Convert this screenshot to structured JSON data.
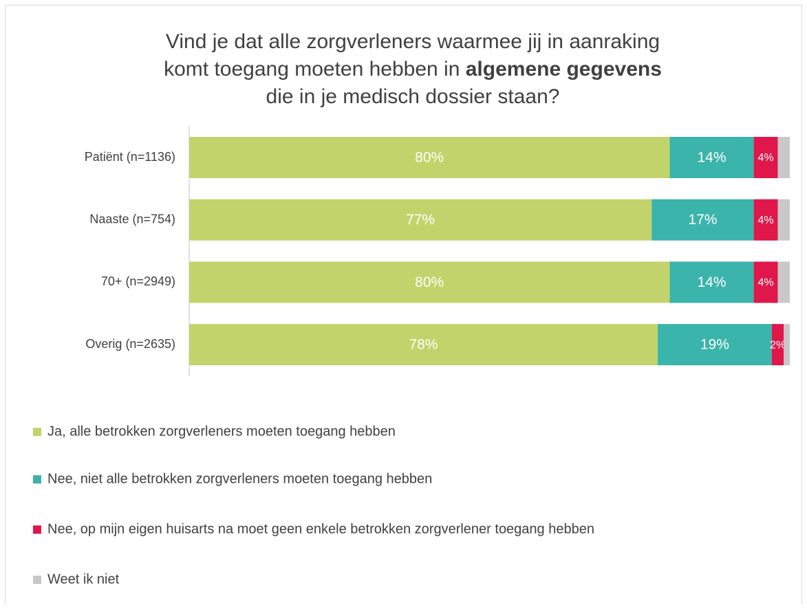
{
  "chart_data": {
    "type": "bar",
    "orientation": "horizontal",
    "stacked": true,
    "title": [
      [
        {
          "text": "Vind je dat alle zorgverleners waarmee jij in aanraking"
        }
      ],
      [
        {
          "text": "komt toegang moeten hebben in "
        },
        {
          "text": "algemene gegevens",
          "bold": true
        }
      ],
      [
        {
          "text": "die in je medisch dossier staan?"
        }
      ]
    ],
    "categories": [
      "Patiënt (n=1136)",
      "Naaste (n=754)",
      "70+ (n=2949)",
      "Overig (n=2635)"
    ],
    "series": [
      {
        "name": "Ja, alle betrokken zorgverleners moeten toegang hebben",
        "color": "#c3d36b",
        "values": [
          80,
          77,
          80,
          78
        ],
        "value_labels": [
          "80%",
          "77%",
          "80%",
          "78%"
        ]
      },
      {
        "name": "Nee, niet alle betrokken zorgverleners moeten toegang hebben",
        "color": "#3bb4ab",
        "values": [
          14,
          17,
          14,
          19
        ],
        "value_labels": [
          "14%",
          "17%",
          "14%",
          "19%"
        ]
      },
      {
        "name": "Nee, op mijn eigen huisarts na moet geen enkele betrokken zorgverlener toegang hebben",
        "color": "#e0174a",
        "values": [
          4,
          4,
          4,
          2
        ],
        "value_labels": [
          "4%",
          "4%",
          "4%",
          "2%"
        ]
      },
      {
        "name": "Weet ik niet",
        "color": "#c8c8c8",
        "values": [
          2,
          2,
          2,
          1
        ]
      }
    ],
    "xlim": [
      0,
      100
    ],
    "legend": "bottom"
  }
}
